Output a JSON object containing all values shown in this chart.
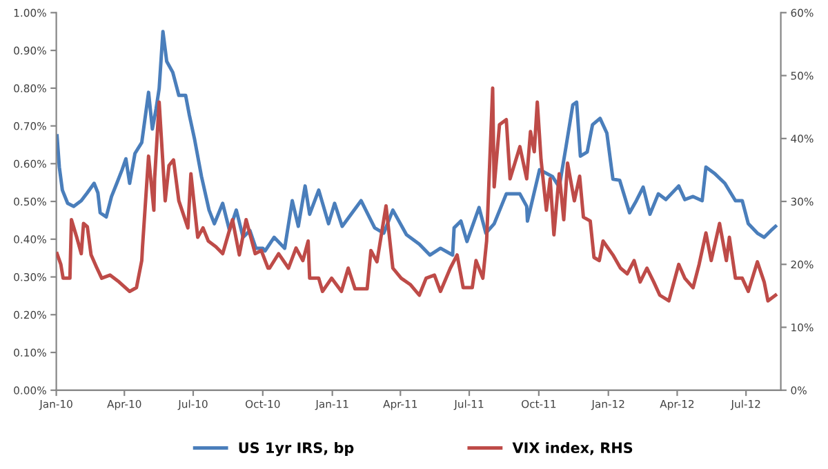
{
  "chart_data": {
    "type": "line",
    "xlim": [
      "2010-01-01",
      "2012-08-16"
    ],
    "xticks": [
      {
        "value": "2010-01-01",
        "label": "Jan-10"
      },
      {
        "value": "2010-04-01",
        "label": "Apr-10"
      },
      {
        "value": "2010-07-01",
        "label": "Jul-10"
      },
      {
        "value": "2010-10-01",
        "label": "Oct-10"
      },
      {
        "value": "2011-01-01",
        "label": "Jan-11"
      },
      {
        "value": "2011-04-01",
        "label": "Apr-11"
      },
      {
        "value": "2011-07-01",
        "label": "Jul-11"
      },
      {
        "value": "2011-10-01",
        "label": "Oct-11"
      },
      {
        "value": "2012-01-01",
        "label": "Jan-12"
      },
      {
        "value": "2012-04-01",
        "label": "Apr-12"
      },
      {
        "value": "2012-07-01",
        "label": "Jul-12"
      }
    ],
    "ylim": [
      0,
      1.0
    ],
    "yticks": [
      {
        "value": 0,
        "label": "0.00%"
      },
      {
        "value": 0.1,
        "label": "0.10%"
      },
      {
        "value": 0.2,
        "label": "0.20%"
      },
      {
        "value": 0.3,
        "label": "0.30%"
      },
      {
        "value": 0.4,
        "label": "0.40%"
      },
      {
        "value": 0.5,
        "label": "0.50%"
      },
      {
        "value": 0.6,
        "label": "0.60%"
      },
      {
        "value": 0.7,
        "label": "0.70%"
      },
      {
        "value": 0.8,
        "label": "0.80%"
      },
      {
        "value": 0.9,
        "label": "0.90%"
      },
      {
        "value": 1.0,
        "label": "1.00%"
      }
    ],
    "y2lim": [
      0,
      60
    ],
    "y2ticks": [
      {
        "value": 0,
        "label": "0%"
      },
      {
        "value": 10,
        "label": "10%"
      },
      {
        "value": 20,
        "label": "20%"
      },
      {
        "value": 30,
        "label": "30%"
      },
      {
        "value": 40,
        "label": "40%"
      },
      {
        "value": 50,
        "label": "50%"
      },
      {
        "value": 60,
        "label": "60%"
      }
    ],
    "grid": false,
    "legend": "bottom",
    "marker": "none",
    "line_style": "solid",
    "series": [
      {
        "name": "US 1yr IRS, bp",
        "color": "#4a7ebb",
        "x": [
          "2010-01-02",
          "2010-01-05",
          "2010-01-09",
          "2010-01-16",
          "2010-01-24",
          "2010-02-03",
          "2010-02-11",
          "2010-02-20",
          "2010-02-25",
          "2010-02-28",
          "2010-03-08",
          "2010-03-15",
          "2010-03-22",
          "2010-03-29",
          "2010-04-03",
          "2010-04-08",
          "2010-04-15",
          "2010-04-24",
          "2010-05-03",
          "2010-05-08",
          "2010-05-13",
          "2010-05-17",
          "2010-05-22",
          "2010-05-27",
          "2010-06-04",
          "2010-06-12",
          "2010-06-21",
          "2010-06-26",
          "2010-07-03",
          "2010-07-12",
          "2010-07-22",
          "2010-07-29",
          "2010-08-09",
          "2010-08-18",
          "2010-08-27",
          "2010-09-05",
          "2010-09-14",
          "2010-09-22",
          "2010-10-01",
          "2010-10-04",
          "2010-10-16",
          "2010-10-30",
          "2010-11-09",
          "2010-11-17",
          "2010-11-26",
          "2010-12-02",
          "2010-12-14",
          "2010-12-27",
          "2011-01-04",
          "2011-01-14",
          "2011-02-08",
          "2011-02-26",
          "2011-03-10",
          "2011-03-22",
          "2011-04-09",
          "2011-04-26",
          "2011-05-10",
          "2011-05-24",
          "2011-06-09",
          "2011-06-11",
          "2011-06-20",
          "2011-06-28",
          "2011-07-14",
          "2011-07-23",
          "2011-08-03",
          "2011-08-19",
          "2011-09-06",
          "2011-09-15",
          "2011-09-16",
          "2011-10-02",
          "2011-10-19",
          "2011-10-28",
          "2011-11-06",
          "2011-11-15",
          "2011-11-20",
          "2011-11-25",
          "2011-12-04",
          "2011-12-11",
          "2011-12-21",
          "2011-12-30",
          "2012-01-07",
          "2012-01-16",
          "2012-01-21",
          "2012-01-29",
          "2012-02-07",
          "2012-02-16",
          "2012-02-25",
          "2012-03-07",
          "2012-03-17",
          "2012-04-03",
          "2012-04-11",
          "2012-04-22",
          "2012-05-04",
          "2012-05-09",
          "2012-05-21",
          "2012-06-03",
          "2012-06-17",
          "2012-06-26",
          "2012-07-04",
          "2012-07-16",
          "2012-07-25",
          "2012-08-03",
          "2012-08-09"
        ],
        "values": [
          0.674,
          0.591,
          0.53,
          0.495,
          0.487,
          0.502,
          0.523,
          0.548,
          0.523,
          0.47,
          0.459,
          0.513,
          0.548,
          0.584,
          0.613,
          0.548,
          0.627,
          0.656,
          0.789,
          0.692,
          0.746,
          0.799,
          0.95,
          0.871,
          0.842,
          0.781,
          0.781,
          0.728,
          0.663,
          0.566,
          0.477,
          0.441,
          0.495,
          0.423,
          0.477,
          0.405,
          0.423,
          0.376,
          0.376,
          0.369,
          0.405,
          0.376,
          0.502,
          0.434,
          0.541,
          0.466,
          0.53,
          0.441,
          0.495,
          0.434,
          0.502,
          0.43,
          0.416,
          0.477,
          0.412,
          0.387,
          0.358,
          0.376,
          0.358,
          0.43,
          0.448,
          0.394,
          0.484,
          0.416,
          0.441,
          0.52,
          0.52,
          0.487,
          0.448,
          0.584,
          0.566,
          0.538,
          0.645,
          0.756,
          0.763,
          0.62,
          0.631,
          0.703,
          0.72,
          0.681,
          0.559,
          0.556,
          0.523,
          0.47,
          0.502,
          0.538,
          0.466,
          0.52,
          0.505,
          0.541,
          0.505,
          0.513,
          0.502,
          0.591,
          0.573,
          0.548,
          0.502,
          0.502,
          0.441,
          0.416,
          0.405,
          0.423,
          0.434
        ]
      },
      {
        "name": "VIX index, RHS",
        "color": "#be4b48",
        "axis": "y2",
        "x": [
          "2010-01-02",
          "2010-01-07",
          "2010-01-10",
          "2010-01-19",
          "2010-01-21",
          "2010-01-28",
          "2010-02-03",
          "2010-02-06",
          "2010-02-11",
          "2010-02-16",
          "2010-02-23",
          "2010-03-02",
          "2010-03-13",
          "2010-03-25",
          "2010-04-08",
          "2010-04-17",
          "2010-04-24",
          "2010-04-25",
          "2010-05-03",
          "2010-05-10",
          "2010-05-11",
          "2010-05-17",
          "2010-05-25",
          "2010-05-30",
          "2010-06-05",
          "2010-06-12",
          "2010-06-24",
          "2010-06-28",
          "2010-07-07",
          "2010-07-14",
          "2010-07-21",
          "2010-07-31",
          "2010-08-09",
          "2010-08-22",
          "2010-08-31",
          "2010-09-09",
          "2010-09-21",
          "2010-09-29",
          "2010-10-08",
          "2010-10-10",
          "2010-10-22",
          "2010-11-04",
          "2010-11-14",
          "2010-11-23",
          "2010-11-30",
          "2010-12-02",
          "2010-12-14",
          "2010-12-19",
          "2010-12-31",
          "2011-01-13",
          "2011-01-22",
          "2011-01-31",
          "2011-02-16",
          "2011-02-21",
          "2011-03-01",
          "2011-03-13",
          "2011-03-22",
          "2011-04-02",
          "2011-04-14",
          "2011-04-26",
          "2011-05-05",
          "2011-05-16",
          "2011-05-24",
          "2011-06-06",
          "2011-06-15",
          "2011-06-23",
          "2011-07-05",
          "2011-07-10",
          "2011-07-19",
          "2011-07-24",
          "2011-08-01",
          "2011-08-03",
          "2011-08-10",
          "2011-08-19",
          "2011-08-24",
          "2011-09-06",
          "2011-09-15",
          "2011-09-20",
          "2011-09-25",
          "2011-09-29",
          "2011-10-04",
          "2011-10-11",
          "2011-10-16",
          "2011-10-21",
          "2011-10-28",
          "2011-11-03",
          "2011-11-08",
          "2011-11-17",
          "2011-11-24",
          "2011-11-29",
          "2011-12-08",
          "2011-12-13",
          "2011-12-20",
          "2011-12-25",
          "2012-01-07",
          "2012-01-17",
          "2012-01-26",
          "2012-02-04",
          "2012-02-12",
          "2012-02-21",
          "2012-03-01",
          "2012-03-09",
          "2012-03-21",
          "2012-04-03",
          "2012-04-11",
          "2012-04-22",
          "2012-04-30",
          "2012-05-09",
          "2012-05-16",
          "2012-05-27",
          "2012-06-05",
          "2012-06-09",
          "2012-06-17",
          "2012-06-26",
          "2012-07-04",
          "2012-07-16",
          "2012-07-25",
          "2012-07-30",
          "2012-08-09"
        ],
        "values": [
          21.7,
          20.0,
          17.8,
          17.8,
          27.1,
          24.3,
          21.7,
          26.5,
          26.0,
          21.5,
          19.6,
          17.8,
          18.3,
          17.2,
          15.7,
          16.3,
          20.6,
          22.8,
          37.2,
          28.6,
          33.6,
          45.8,
          30.1,
          35.7,
          36.6,
          30.1,
          25.8,
          34.4,
          24.3,
          25.8,
          23.7,
          22.8,
          21.7,
          27.1,
          21.5,
          27.1,
          21.7,
          22.2,
          19.4,
          19.4,
          21.7,
          19.4,
          22.6,
          20.6,
          23.7,
          17.8,
          17.8,
          15.7,
          17.8,
          15.7,
          19.4,
          16.1,
          16.1,
          22.2,
          20.4,
          29.3,
          19.4,
          17.8,
          16.8,
          15.1,
          17.8,
          18.3,
          15.7,
          19.4,
          21.5,
          16.3,
          16.3,
          20.6,
          17.8,
          23.7,
          48.0,
          32.3,
          42.2,
          43.0,
          33.6,
          38.7,
          33.6,
          41.1,
          37.9,
          45.8,
          36.6,
          28.6,
          33.6,
          24.7,
          34.4,
          27.1,
          36.1,
          30.1,
          34.0,
          27.5,
          26.9,
          21.1,
          20.6,
          23.7,
          21.5,
          19.4,
          18.5,
          20.6,
          17.2,
          19.4,
          17.2,
          15.1,
          14.2,
          20.0,
          17.8,
          16.3,
          20.0,
          25.0,
          20.6,
          26.5,
          20.6,
          24.3,
          17.8,
          17.8,
          15.7,
          20.4,
          17.2,
          14.2,
          15.1
        ]
      }
    ]
  }
}
